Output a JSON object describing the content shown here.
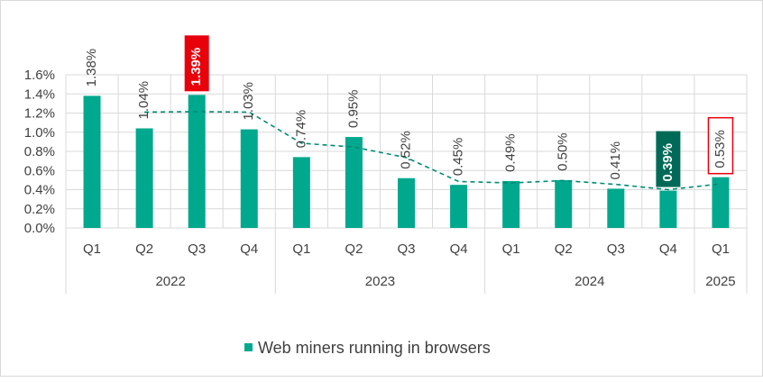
{
  "chart_data": {
    "type": "bar",
    "ylim": [
      0,
      1.6
    ],
    "yticks": [
      "0.0%",
      "0.2%",
      "0.4%",
      "0.6%",
      "0.8%",
      "1.0%",
      "1.2%",
      "1.4%",
      "1.6%"
    ],
    "ytick_values": [
      0,
      0.2,
      0.4,
      0.6,
      0.8,
      1.0,
      1.2,
      1.4,
      1.6
    ],
    "categories": [
      "Q1",
      "Q2",
      "Q3",
      "Q4",
      "Q1",
      "Q2",
      "Q3",
      "Q4",
      "Q1",
      "Q2",
      "Q3",
      "Q4",
      "Q1"
    ],
    "groups": [
      {
        "label": "2022",
        "count": 4
      },
      {
        "label": "2023",
        "count": 4
      },
      {
        "label": "2024",
        "count": 4
      },
      {
        "label": "2025",
        "count": 1
      }
    ],
    "series": [
      {
        "name": "Web miners running in browsers",
        "values": [
          1.38,
          1.04,
          1.39,
          1.03,
          0.74,
          0.95,
          0.52,
          0.45,
          0.49,
          0.5,
          0.41,
          0.39,
          0.53
        ],
        "labels": [
          "1.38%",
          "1.04%",
          "1.39%",
          "1.03%",
          "0.74%",
          "0.95%",
          "0.52%",
          "0.45%",
          "0.49%",
          "0.50%",
          "0.41%",
          "0.39%",
          "0.53%"
        ]
      }
    ],
    "trendline": {
      "style": "dashed",
      "kind": "moving average"
    },
    "highlights": [
      {
        "index": 2,
        "style": "red-filled"
      },
      {
        "index": 11,
        "style": "dark-green-filled"
      },
      {
        "index": 12,
        "style": "red-outline"
      }
    ],
    "legend": "bottom",
    "grid": true,
    "colors": {
      "bar": "#00a88e",
      "trend": "#008c73",
      "highlight_red": "#e8000b",
      "highlight_dark": "#006a57",
      "grid": "#d9d9d9",
      "text": "#404040"
    }
  }
}
